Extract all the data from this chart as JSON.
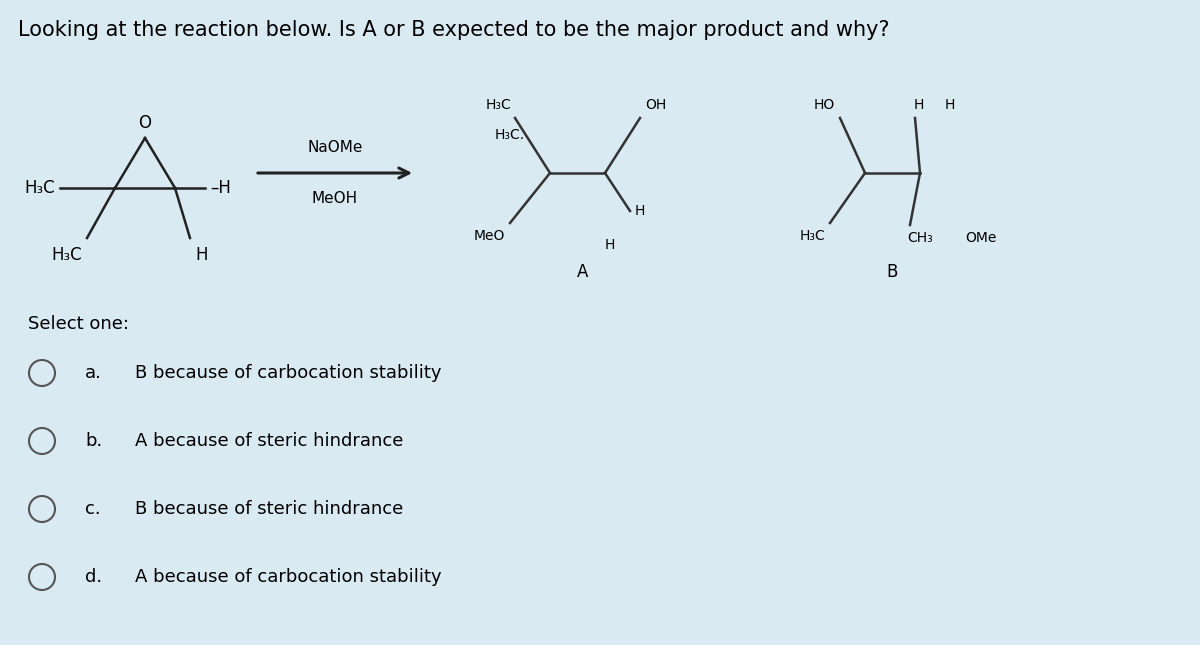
{
  "title": "Looking at the reaction below. Is A or B expected to be the major product and why?",
  "background_color": "#daeaf3",
  "text_color": "#000000",
  "title_fontsize": 15,
  "select_one_text": "Select one:",
  "options": [
    {
      "letter": "a.",
      "text": "B because of carbocation stability"
    },
    {
      "letter": "b.",
      "text": "A because of steric hindrance"
    },
    {
      "letter": "c.",
      "text": "B because of steric hindrance"
    },
    {
      "letter": "d.",
      "text": "A because of carbocation stability"
    }
  ],
  "reagent_line1": "NaOMe",
  "reagent_line2": "MeOH",
  "label_A": "A",
  "label_B": "B"
}
